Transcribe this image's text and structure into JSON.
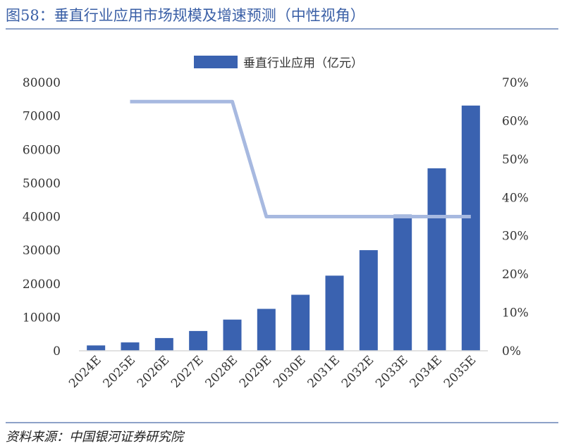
{
  "figure": {
    "title": "图58：垂直行业应用市场规模及增速预测（中性视角）",
    "source": "资料来源：中国银河证券研究院"
  },
  "colors": {
    "bar": "#3A62B0",
    "line": "#A7B9E0",
    "title": "#3A5FA6",
    "rule": "#8EA2C8"
  },
  "chart_data": {
    "type": "bar",
    "categories": [
      "2024E",
      "2025E",
      "2026E",
      "2027E",
      "2028E",
      "2029E",
      "2030E",
      "2031E",
      "2032E",
      "2033E",
      "2034E",
      "2035E"
    ],
    "series": [
      {
        "name": "垂直行业应用（亿元）",
        "type": "bar",
        "axis": "left",
        "values": [
          1600,
          2500,
          3800,
          5900,
          9300,
          12500,
          16700,
          22400,
          30000,
          40600,
          54400,
          73100
        ]
      },
      {
        "type": "line",
        "axis": "right",
        "values": [
          null,
          0.65,
          0.65,
          0.65,
          0.65,
          0.35,
          0.35,
          0.35,
          0.35,
          0.35,
          0.35,
          0.35
        ]
      }
    ],
    "y_left": {
      "min": 0,
      "max": 80000,
      "ticks": [
        "0",
        "10000",
        "20000",
        "30000",
        "40000",
        "50000",
        "60000",
        "70000",
        "80000"
      ]
    },
    "y_right": {
      "min": 0,
      "max": 0.7,
      "ticks": [
        "0%",
        "10%",
        "20%",
        "30%",
        "40%",
        "50%",
        "60%",
        "70%"
      ]
    },
    "legend": {
      "position": "top",
      "entries": [
        "垂直行业应用（亿元）"
      ]
    },
    "grid": false
  }
}
